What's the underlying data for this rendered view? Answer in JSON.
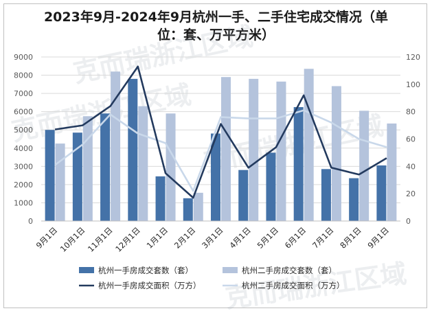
{
  "chart_data": {
    "type": "bar",
    "title_line1": "2023年9月-2024年9月杭州一手、二手住宅成交情况（单",
    "title_line2": "位：套、万平方米）",
    "categories": [
      "9月1日",
      "10月1日",
      "11月1日",
      "12月1日",
      "1月1日",
      "2月1日",
      "3月1日",
      "4月1日",
      "5月1日",
      "6月1日",
      "7月1日",
      "8月1日",
      "9月1日"
    ],
    "y_left": {
      "min": 0,
      "max": 9000,
      "step": 1000
    },
    "y_right": {
      "min": 0,
      "max": 120,
      "step": 20
    },
    "grid": true,
    "legend_position": "bottom",
    "bar_series": [
      {
        "name": "杭州一手房成交套数（套）",
        "color": "#4472a8",
        "values": [
          5000,
          4850,
          5900,
          7800,
          2450,
          1250,
          4800,
          2800,
          3750,
          6250,
          2850,
          2350,
          3050
        ]
      },
      {
        "name": "杭州二手房成交套数（套）",
        "color": "#b4c3dc",
        "values": [
          4250,
          5750,
          8200,
          6300,
          5900,
          1550,
          7900,
          7800,
          7650,
          8350,
          7400,
          6050,
          5350
        ]
      }
    ],
    "line_series": [
      {
        "name": "杭州一手房成交面积（万方）",
        "color": "#233a5e",
        "values": [
          67,
          70,
          84,
          113,
          35,
          17,
          71,
          39,
          54,
          92,
          39,
          34,
          46
        ]
      },
      {
        "name": "杭州二手房成交面积（万方）",
        "color": "#c9d8ea",
        "values": [
          41,
          56,
          78,
          64,
          57,
          22,
          76,
          75,
          75,
          81,
          72,
          60,
          54
        ]
      }
    ]
  },
  "watermark": "克而瑞浙江区域"
}
